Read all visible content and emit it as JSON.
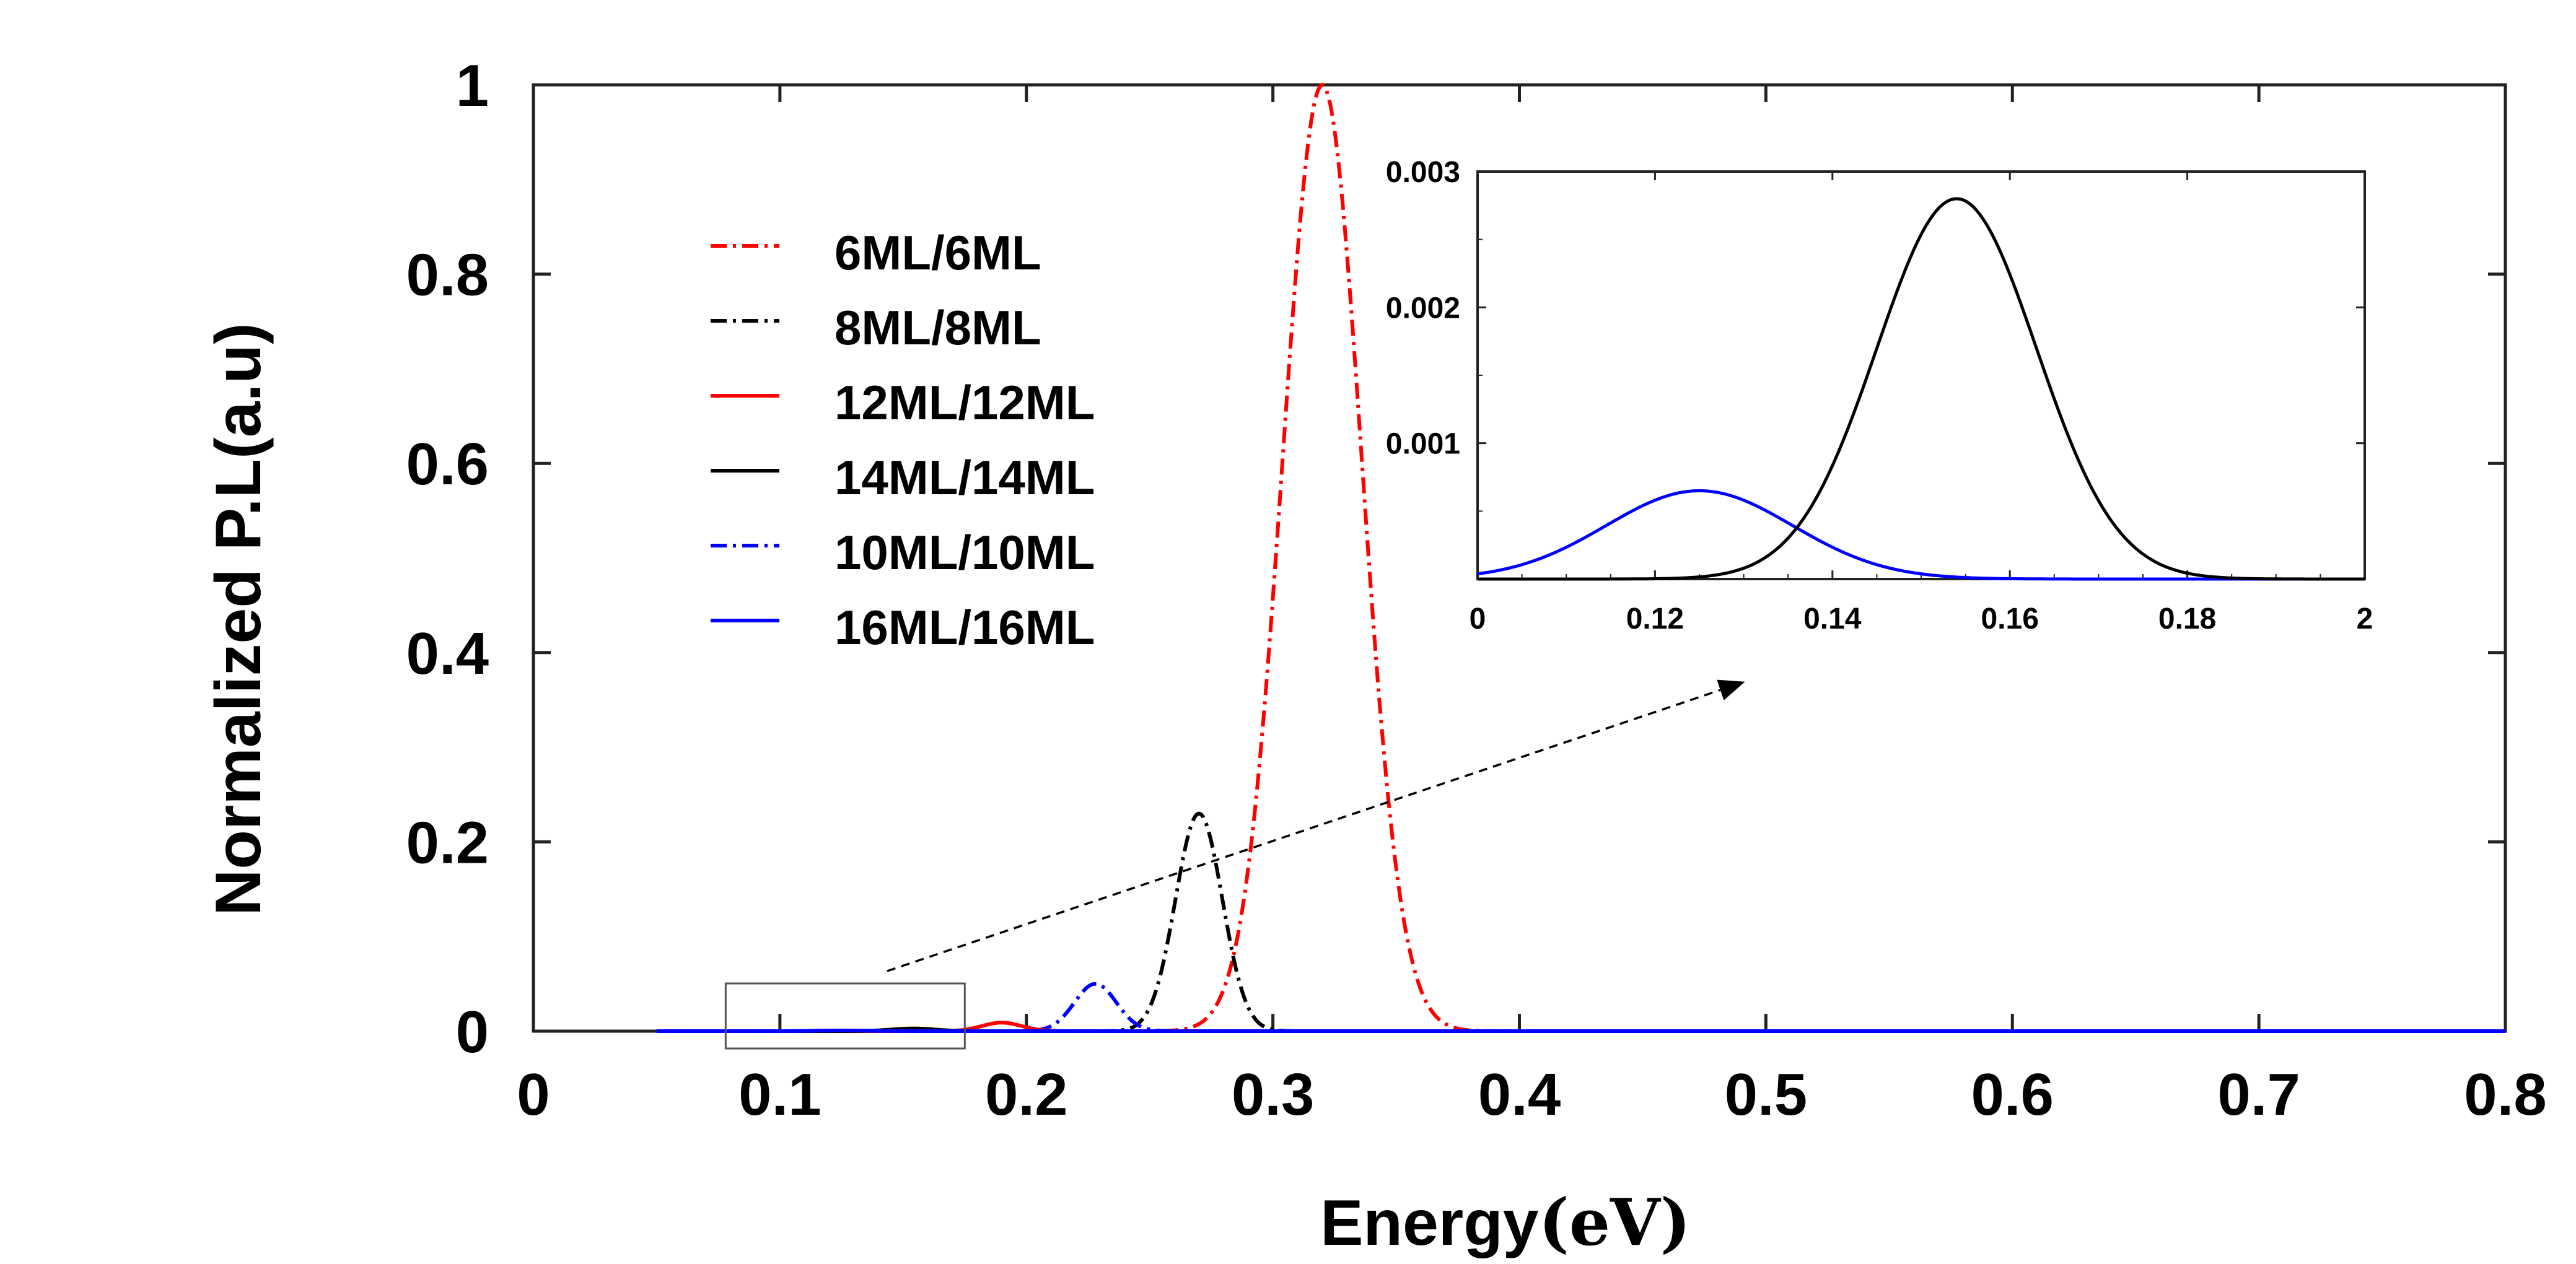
{
  "chart_data": {
    "type": "line",
    "title": "",
    "xlabel": "Energy",
    "xlabel_unit": "(eV)",
    "ylabel": "Normalized P.L(a.u)",
    "xlim": [
      0,
      0.8
    ],
    "ylim": [
      0,
      1
    ],
    "x_ticks": [
      "0",
      "0.1",
      "0.2",
      "0.3",
      "0.4",
      "0.5",
      "0.6",
      "0.7",
      "0.8"
    ],
    "y_ticks": [
      "0",
      "0.2",
      "0.4",
      "0.6",
      "0.8",
      "1"
    ],
    "grid": false,
    "legend_position": "top-left",
    "series": [
      {
        "name": "6ML/6ML",
        "color": "#ff0000",
        "dash": "dashdot",
        "peak_x": 0.32,
        "peak_y": 1.0,
        "width": 0.016
      },
      {
        "name": "8ML/8ML",
        "color": "#000000",
        "dash": "dashdot",
        "peak_x": 0.27,
        "peak_y": 0.23,
        "width": 0.0095
      },
      {
        "name": "12ML/12ML",
        "color": "#ff0000",
        "dash": "solid",
        "peak_x": 0.19,
        "peak_y": 0.009,
        "width": 0.008
      },
      {
        "name": "14ML/14ML",
        "color": "#000000",
        "dash": "solid",
        "peak_x": 0.154,
        "peak_y": 0.0028,
        "width": 0.009
      },
      {
        "name": "10ML/10ML",
        "color": "#0000ff",
        "dash": "dashdot",
        "peak_x": 0.228,
        "peak_y": 0.05,
        "width": 0.0085
      },
      {
        "name": "16ML/16ML",
        "color": "#0000ff",
        "dash": "solid",
        "peak_x": 0.125,
        "peak_y": 0.00065,
        "width": 0.0105
      }
    ],
    "zoom_region": {
      "x_range": [
        0.078,
        0.175
      ],
      "y_range": [
        0,
        0.004
      ]
    },
    "inset": {
      "x_ticks": [
        "0",
        "0.12",
        "0.14",
        "0.16",
        "0.18",
        "2"
      ],
      "y_ticks": [
        "0.001",
        "0.002",
        "0.003"
      ],
      "xlim": [
        0.1,
        0.2
      ],
      "ylim": [
        0,
        0.003
      ],
      "series": [
        "16ML/16ML",
        "14ML/14ML"
      ]
    }
  }
}
